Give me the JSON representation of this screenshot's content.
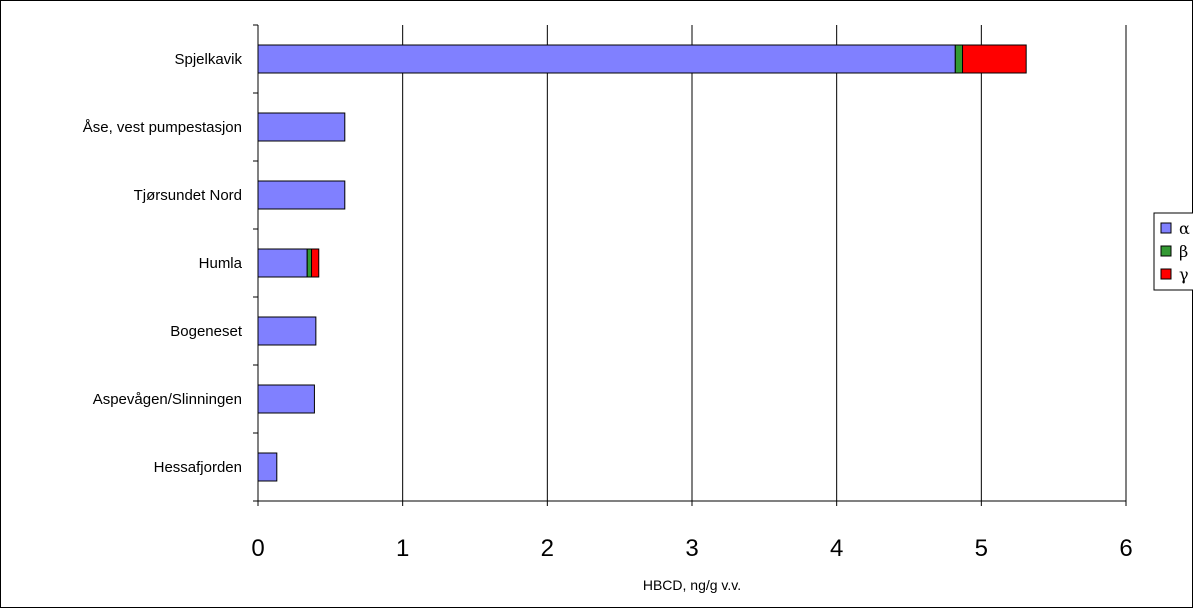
{
  "chart_data": {
    "type": "bar",
    "orientation": "horizontal",
    "stacked": true,
    "categories": [
      "Spjelkavik",
      "Åse, vest pumpestasjon",
      "Tjørsundet Nord",
      "Humla",
      "Bogeneset",
      "Aspevågen/Slinningen",
      "Hessafjorden"
    ],
    "series": [
      {
        "name": "α",
        "color": "#8080ff",
        "values": [
          4.82,
          0.6,
          0.6,
          0.34,
          0.4,
          0.39,
          0.13
        ]
      },
      {
        "name": "β",
        "color": "#339933",
        "values": [
          0.05,
          0,
          0,
          0.03,
          0,
          0,
          0
        ]
      },
      {
        "name": "γ",
        "color": "#ff0000",
        "values": [
          0.44,
          0,
          0,
          0.05,
          0,
          0,
          0
        ]
      }
    ],
    "xlabel": "HBCD, ng/g v.v.",
    "ylabel": "",
    "xlim": [
      0,
      6
    ],
    "xticks": [
      "0",
      "1",
      "2",
      "3",
      "4",
      "5",
      "6"
    ],
    "grid": "vertical",
    "legend_position": "right"
  }
}
